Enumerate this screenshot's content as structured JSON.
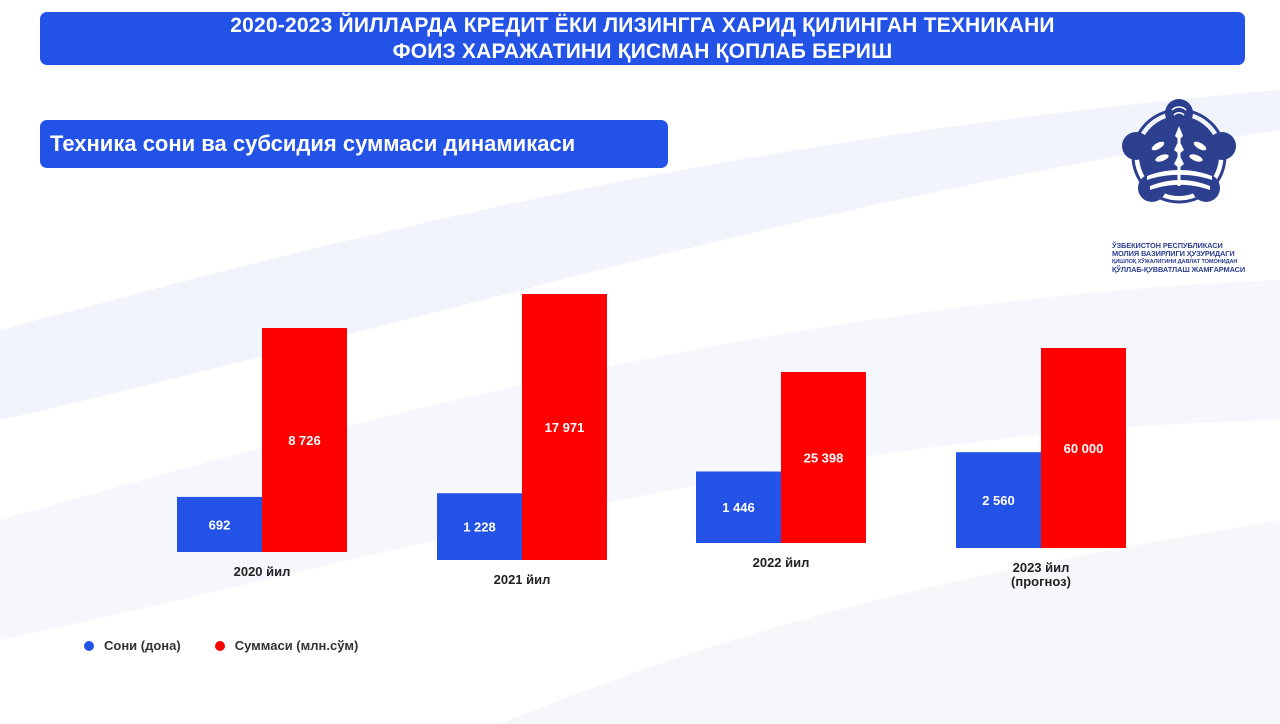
{
  "header": {
    "title_line1": "2020-2023 ЙИЛЛАРДА КРЕДИТ ЁКИ ЛИЗИНГГА ХАРИД ҚИЛИНГАН ТЕХНИКАНИ",
    "title_line2": "ФОИЗ ХАРАЖАТИНИ ҚИСМАН ҚОПЛАБ БЕРИШ"
  },
  "subtitle": "Техника сони ва субсидия суммаси динамикаси",
  "logo": {
    "line1": "ЎЗБЕКИСТОН РЕСПУБЛИКАСИ",
    "line2": "МОЛИЯ ВАЗИРЛИГИ ҲУЗУРИДАГИ",
    "line3": "ҚИШЛОҚ ХЎЖАЛИГИНИ ДАВЛАТ ТОМОНИДАН",
    "line4": "ҚЎЛЛАБ-ҚУВВАТЛАШ ЖАМҒАРМАСИ"
  },
  "colors": {
    "banner": "#2352e6",
    "count": "#2352e6",
    "sum": "#ff0000"
  },
  "legend": {
    "count_label": "Сони (дона)",
    "sum_label": "Суммаси (млн.сўм)"
  },
  "chart_data": {
    "type": "bar",
    "categories": [
      "2020 йил",
      "2021 йил",
      "2022 йил",
      "2023 йил (прогноз)"
    ],
    "category_lines": [
      [
        "2020 йил"
      ],
      [
        "2021 йил"
      ],
      [
        "2022 йил"
      ],
      [
        "2023 йил",
        "(прогноз)"
      ]
    ],
    "series": [
      {
        "name": "Сони (дона)",
        "values": [
          692,
          1228,
          1446,
          2560
        ],
        "labels": [
          "692",
          "1 228",
          "1 446",
          "2 560"
        ]
      },
      {
        "name": "Суммаси (млн.сўм)",
        "values": [
          8726,
          17971,
          25398,
          60000
        ],
        "labels": [
          "8 726",
          "17 971",
          "25 398",
          "60 000"
        ]
      }
    ],
    "legend_position": "bottom-left",
    "grid": false
  }
}
